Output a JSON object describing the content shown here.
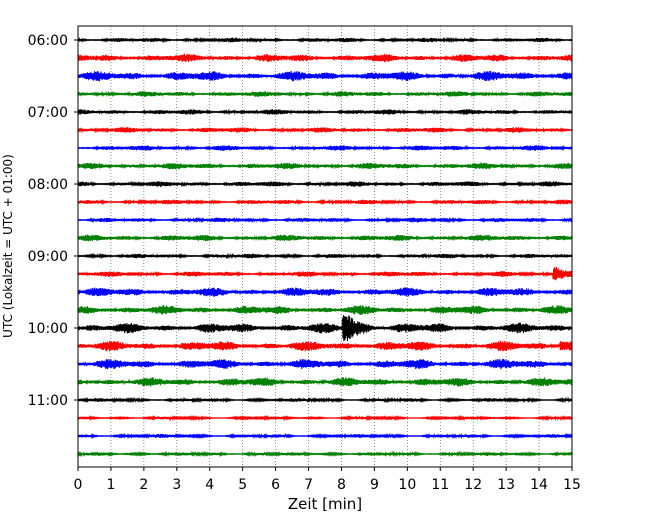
{
  "chart_data": {
    "type": "line",
    "title": "",
    "xlabel": "Zeit  [min]",
    "ylabel": "UTC (Lokalzeit = UTC + 01:00)",
    "xlim": [
      0,
      15
    ],
    "x_ticks": [
      "0",
      "1",
      "2",
      "3",
      "4",
      "5",
      "6",
      "7",
      "8",
      "9",
      "10",
      "11",
      "12",
      "13",
      "14",
      "15"
    ],
    "y_ticks": [
      "06:00",
      "07:00",
      "08:00",
      "09:00",
      "10:00",
      "11:00"
    ],
    "grid": "vertical dotted",
    "trace_interval_minutes": 15,
    "trace_colors": [
      "#000000",
      "#ff0000",
      "#0000ff",
      "#008000"
    ],
    "series": [
      {
        "start": "06:00",
        "color": "#000000",
        "amplitude": 0.25
      },
      {
        "start": "06:15",
        "color": "#ff0000",
        "amplitude": 0.45
      },
      {
        "start": "06:30",
        "color": "#0000ff",
        "amplitude": 0.55
      },
      {
        "start": "06:45",
        "color": "#008000",
        "amplitude": 0.3
      },
      {
        "start": "07:00",
        "color": "#000000",
        "amplitude": 0.3
      },
      {
        "start": "07:15",
        "color": "#ff0000",
        "amplitude": 0.3
      },
      {
        "start": "07:30",
        "color": "#0000ff",
        "amplitude": 0.3
      },
      {
        "start": "07:45",
        "color": "#008000",
        "amplitude": 0.35
      },
      {
        "start": "08:00",
        "color": "#000000",
        "amplitude": 0.3
      },
      {
        "start": "08:15",
        "color": "#ff0000",
        "amplitude": 0.25
      },
      {
        "start": "08:30",
        "color": "#0000ff",
        "amplitude": 0.25
      },
      {
        "start": "08:45",
        "color": "#008000",
        "amplitude": 0.35
      },
      {
        "start": "09:00",
        "color": "#000000",
        "amplitude": 0.25
      },
      {
        "start": "09:15",
        "color": "#ff0000",
        "amplitude": 0.3
      },
      {
        "start": "09:30",
        "color": "#0000ff",
        "amplitude": 0.5
      },
      {
        "start": "09:45",
        "color": "#008000",
        "amplitude": 0.5
      },
      {
        "start": "10:00",
        "color": "#000000",
        "amplitude": 0.55
      },
      {
        "start": "10:15",
        "color": "#ff0000",
        "amplitude": 0.55
      },
      {
        "start": "10:30",
        "color": "#0000ff",
        "amplitude": 0.55
      },
      {
        "start": "10:45",
        "color": "#008000",
        "amplitude": 0.5
      },
      {
        "start": "11:00",
        "color": "#000000",
        "amplitude": 0.2
      },
      {
        "start": "11:15",
        "color": "#ff0000",
        "amplitude": 0.15
      },
      {
        "start": "11:30",
        "color": "#0000ff",
        "amplitude": 0.2
      },
      {
        "start": "11:45",
        "color": "#008000",
        "amplitude": 0.2
      }
    ],
    "events": [
      {
        "start": "10:00",
        "minute": 8.1,
        "amplitude": 1.7
      },
      {
        "start": "09:15",
        "minute": 14.5,
        "amplitude": 0.8
      },
      {
        "start": "10:15",
        "minute": 14.7,
        "amplitude": 0.6
      }
    ]
  }
}
